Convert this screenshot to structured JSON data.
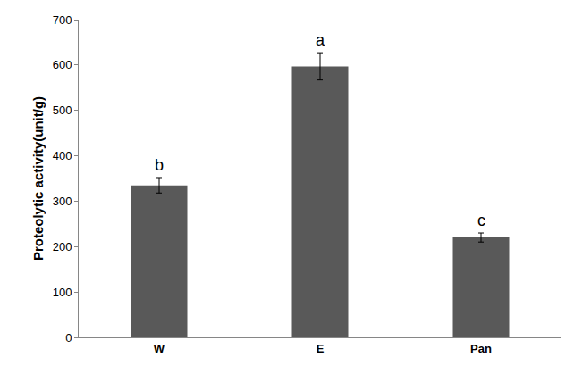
{
  "chart_data": {
    "type": "bar",
    "y_label": "Proteolytic activity(unit/g)",
    "categories": [
      "W",
      "E",
      "Pan"
    ],
    "values": [
      335,
      597,
      220
    ],
    "errors": [
      17,
      30,
      10
    ],
    "annotations": [
      {
        "category": "W",
        "text": "b"
      },
      {
        "category": "E",
        "text": "a"
      },
      {
        "category": "Pan",
        "text": "c"
      }
    ],
    "color": "#595959",
    "ylim": [
      0,
      700
    ],
    "yticks": [
      0,
      100,
      200,
      300,
      400,
      500,
      600,
      700
    ],
    "grid": false
  }
}
